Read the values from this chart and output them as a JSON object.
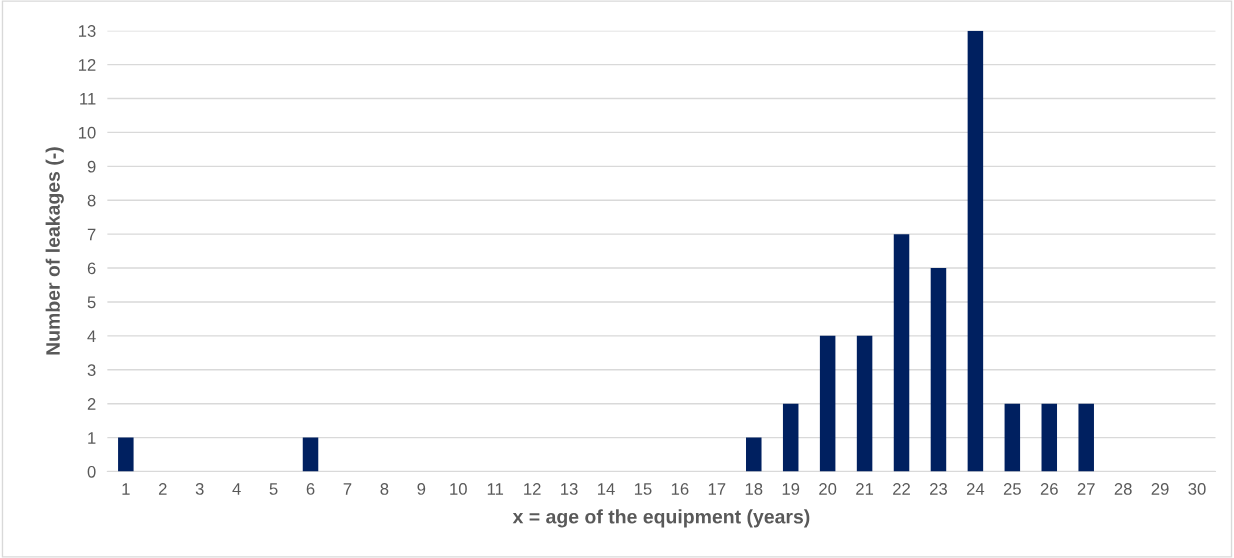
{
  "chart_data": {
    "type": "bar",
    "xlabel": "x = age of the equipment (years)",
    "ylabel": "Number of leakages (-)",
    "categories": [
      "1",
      "2",
      "3",
      "4",
      "5",
      "6",
      "7",
      "8",
      "9",
      "10",
      "11",
      "12",
      "13",
      "14",
      "15",
      "16",
      "17",
      "18",
      "19",
      "20",
      "21",
      "22",
      "23",
      "24",
      "25",
      "26",
      "27",
      "28",
      "29",
      "30"
    ],
    "values": [
      1,
      0,
      0,
      0,
      0,
      1,
      0,
      0,
      0,
      0,
      0,
      0,
      0,
      0,
      0,
      0,
      0,
      1,
      2,
      4,
      4,
      7,
      6,
      13,
      2,
      2,
      2,
      0,
      0,
      0
    ],
    "color": "#002060",
    "ylim": [
      0,
      13
    ],
    "yticks": [
      0,
      1,
      2,
      3,
      4,
      5,
      6,
      7,
      8,
      9,
      10,
      11,
      12,
      13
    ],
    "grid": "y",
    "legend": false
  }
}
